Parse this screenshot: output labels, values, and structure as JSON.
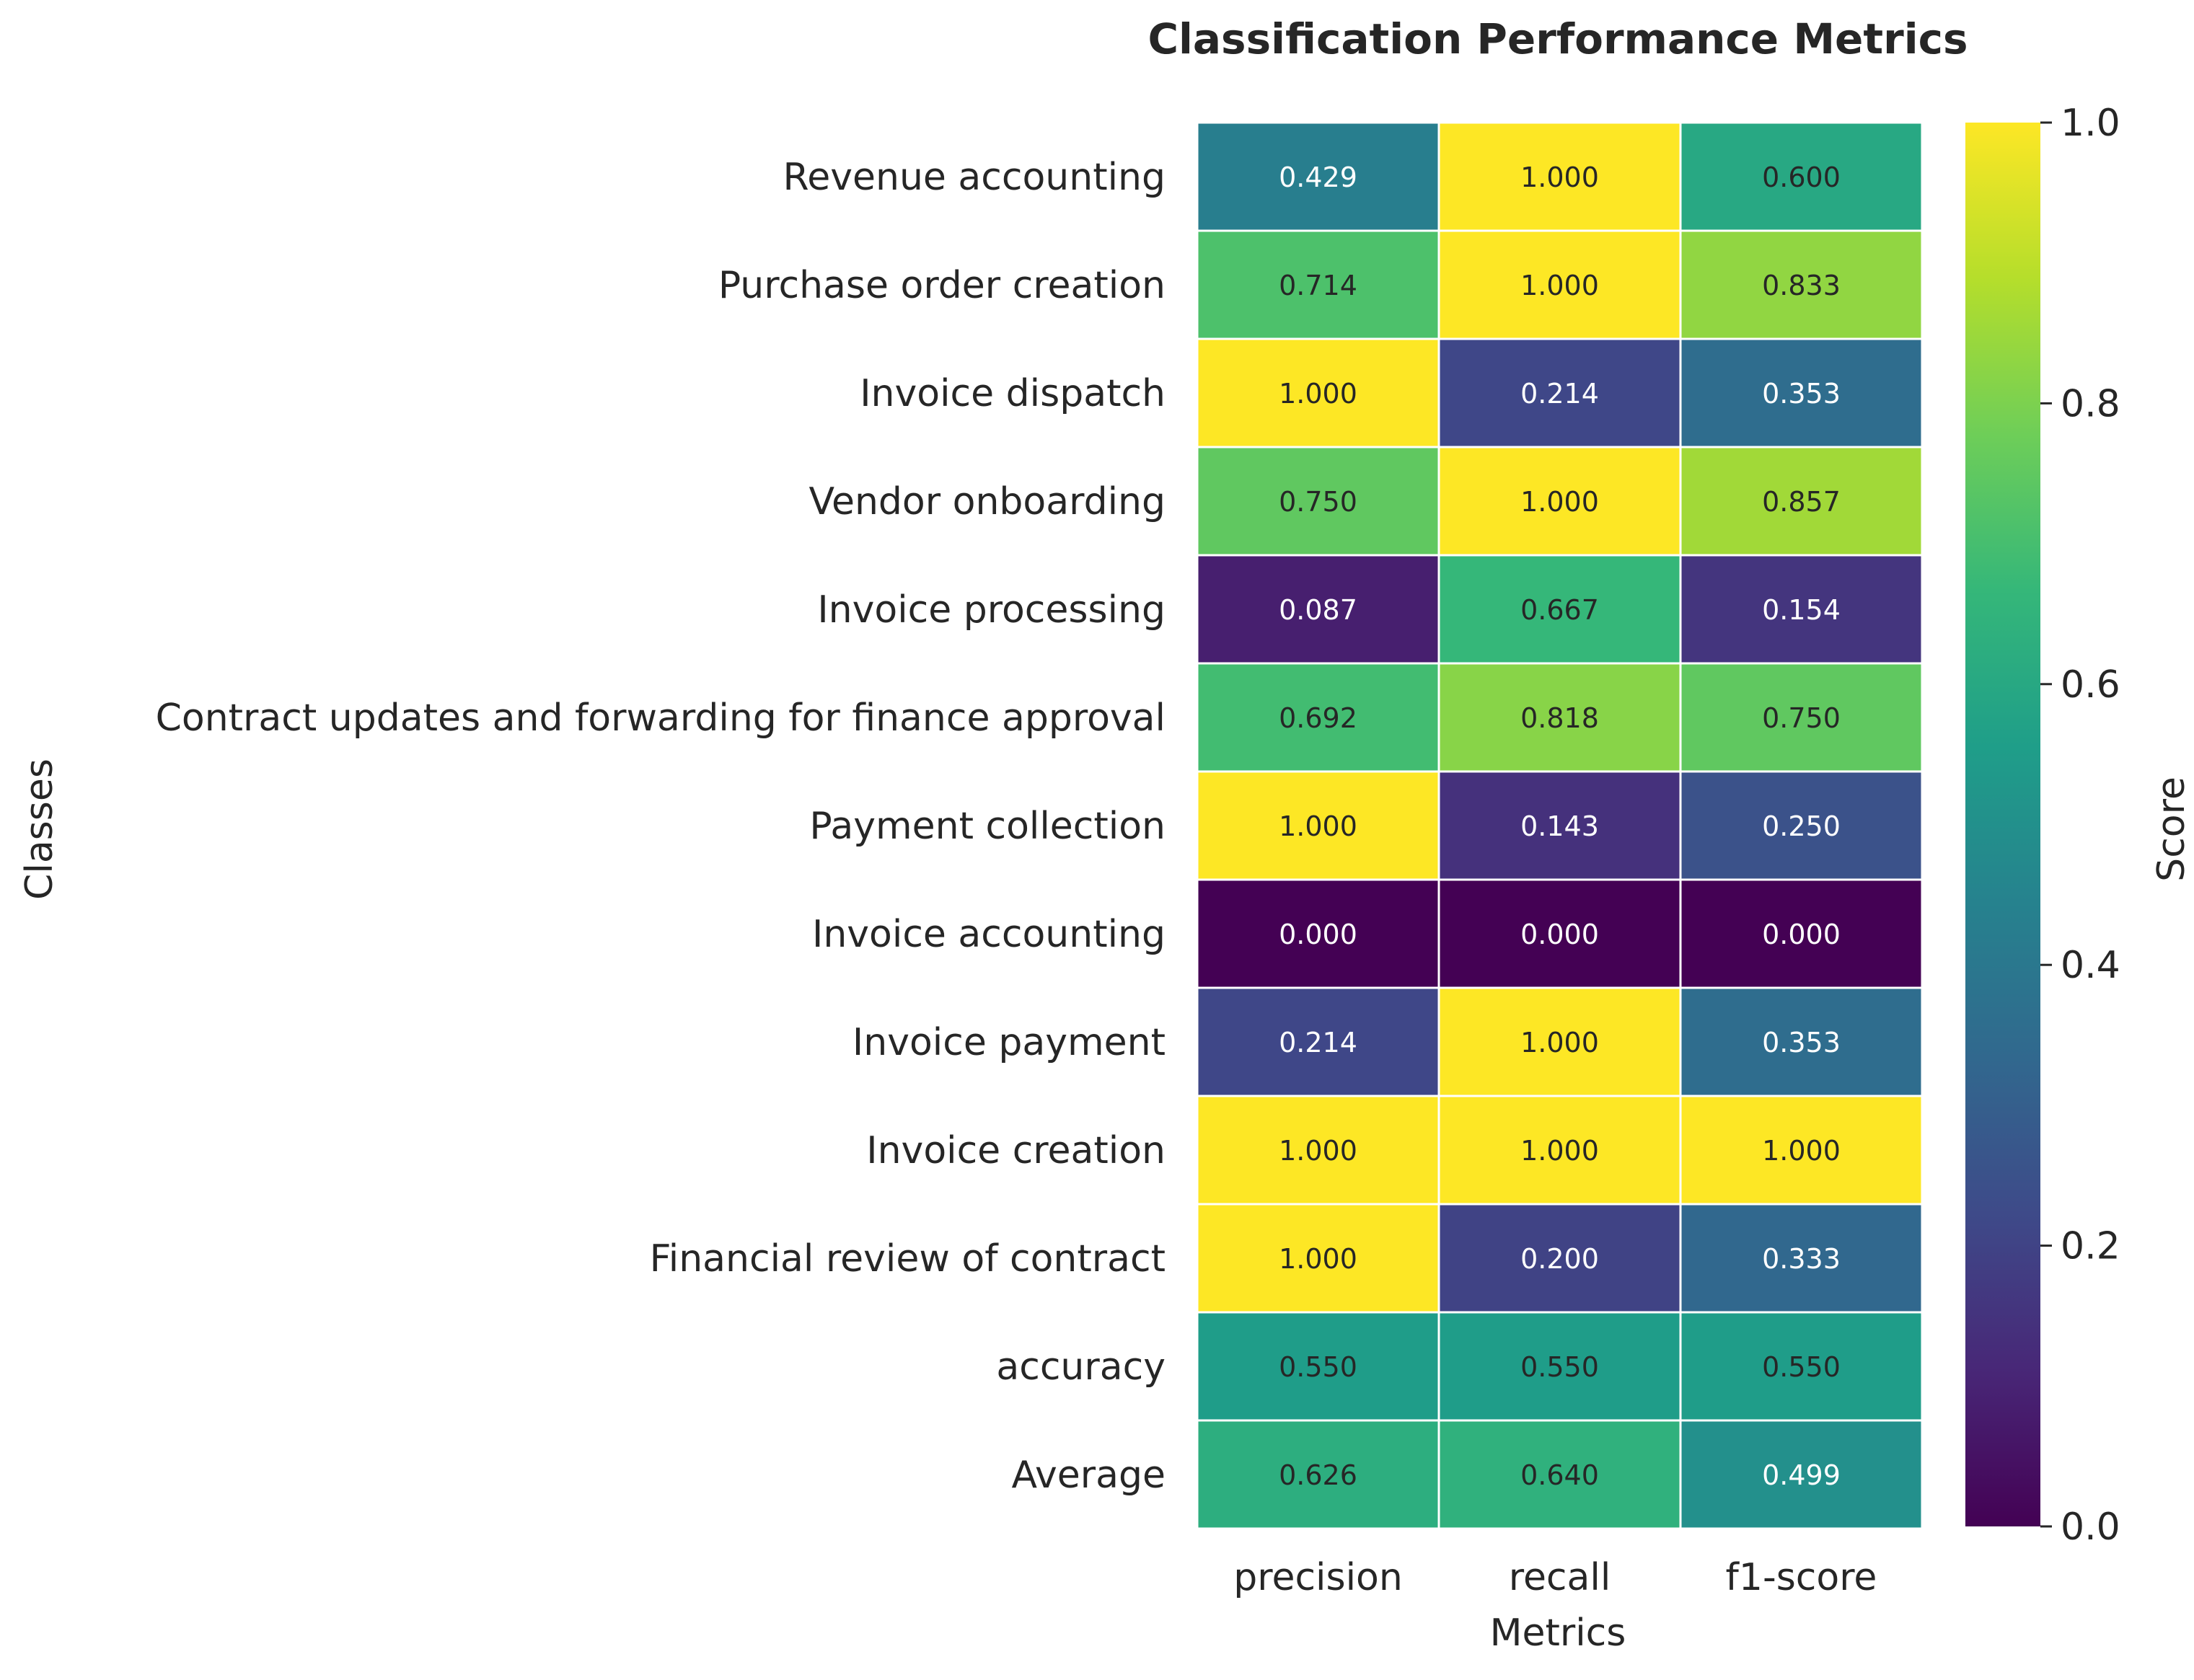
{
  "chart_data": {
    "type": "heatmap",
    "title": "Classification Performance Metrics",
    "xlabel": "Metrics",
    "ylabel": "Classes",
    "x": [
      "precision",
      "recall",
      "f1-score"
    ],
    "y": [
      "Revenue accounting",
      "Purchase order creation",
      "Invoice dispatch",
      "Vendor onboarding",
      "Invoice processing",
      "Contract updates and forwarding for finance approval",
      "Payment collection",
      "Invoice accounting",
      "Invoice payment",
      "Invoice creation",
      "Financial review of contract",
      "accuracy",
      "Average"
    ],
    "values": [
      [
        0.429,
        1.0,
        0.6
      ],
      [
        0.714,
        1.0,
        0.833
      ],
      [
        1.0,
        0.214,
        0.353
      ],
      [
        0.75,
        1.0,
        0.857
      ],
      [
        0.087,
        0.667,
        0.154
      ],
      [
        0.692,
        0.818,
        0.75
      ],
      [
        1.0,
        0.143,
        0.25
      ],
      [
        0.0,
        0.0,
        0.0
      ],
      [
        0.214,
        1.0,
        0.353
      ],
      [
        1.0,
        1.0,
        1.0
      ],
      [
        1.0,
        0.2,
        0.333
      ],
      [
        0.55,
        0.55,
        0.55
      ],
      [
        0.626,
        0.64,
        0.499
      ]
    ],
    "cell_labels": [
      [
        "0.429",
        "1.000",
        "0.600"
      ],
      [
        "0.714",
        "1.000",
        "0.833"
      ],
      [
        "1.000",
        "0.214",
        "0.353"
      ],
      [
        "0.750",
        "1.000",
        "0.857"
      ],
      [
        "0.087",
        "0.667",
        "0.154"
      ],
      [
        "0.692",
        "0.818",
        "0.750"
      ],
      [
        "1.000",
        "0.143",
        "0.250"
      ],
      [
        "0.000",
        "0.000",
        "0.000"
      ],
      [
        "0.214",
        "1.000",
        "0.353"
      ],
      [
        "1.000",
        "1.000",
        "1.000"
      ],
      [
        "1.000",
        "0.200",
        "0.333"
      ],
      [
        "0.550",
        "0.550",
        "0.550"
      ],
      [
        "0.626",
        "0.640",
        "0.499"
      ]
    ],
    "colormap": "viridis",
    "color_range": [
      0,
      1
    ],
    "colorbar": {
      "label": "Score",
      "ticks": [
        0.0,
        0.2,
        0.4,
        0.6,
        0.8,
        1.0
      ],
      "tick_labels": [
        "0.0",
        "0.2",
        "0.4",
        "0.6",
        "0.8",
        "1.0"
      ]
    },
    "cell_border_color": "#ffffff"
  }
}
